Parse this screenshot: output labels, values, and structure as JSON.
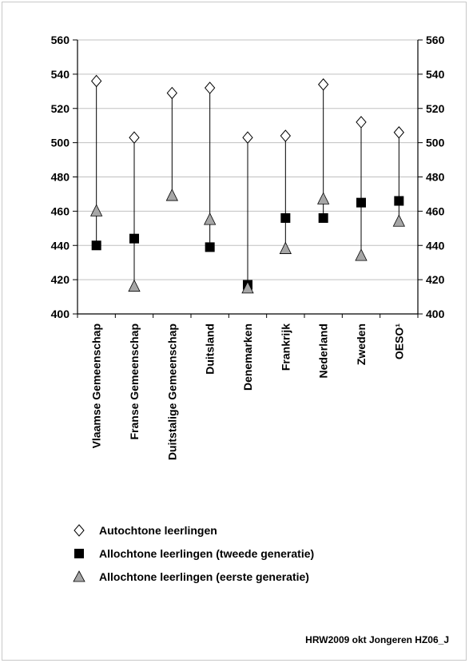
{
  "chart_data": {
    "type": "scatter",
    "categories": [
      "Vlaamse Gemeenschap",
      "Franse Gemeenschap",
      "Duitstalige Gemeenschap",
      "Duitsland",
      "Denemarken",
      "Frankrijk",
      "Nederland",
      "Zweden",
      "OESO¹"
    ],
    "series": [
      {
        "name": "Autochtone leerlingen",
        "marker": "diamond-open",
        "values": [
          536,
          503,
          529,
          532,
          503,
          504,
          534,
          512,
          506
        ]
      },
      {
        "name": "Allochtone leerlingen (tweede generatie)",
        "marker": "square-black",
        "values": [
          440,
          444,
          null,
          439,
          417,
          456,
          456,
          465,
          466
        ]
      },
      {
        "name": "Allochtone leerlingen (eerste generatie)",
        "marker": "triangle-gray",
        "values": [
          460,
          416,
          469,
          455,
          415,
          438,
          467,
          434,
          454
        ]
      }
    ],
    "ylim": [
      400,
      560
    ],
    "yticks": [
      560,
      540,
      520,
      500,
      480,
      460,
      440,
      420,
      400
    ],
    "grid": true,
    "legend_position": "bottom-left",
    "colors": {
      "marker_fill_triangle": "#a6a6a6",
      "grid": "#c0c0c0",
      "axis": "#000000"
    }
  },
  "footer": {
    "credit": "HRW2009 okt Jongeren HZ06_J"
  }
}
